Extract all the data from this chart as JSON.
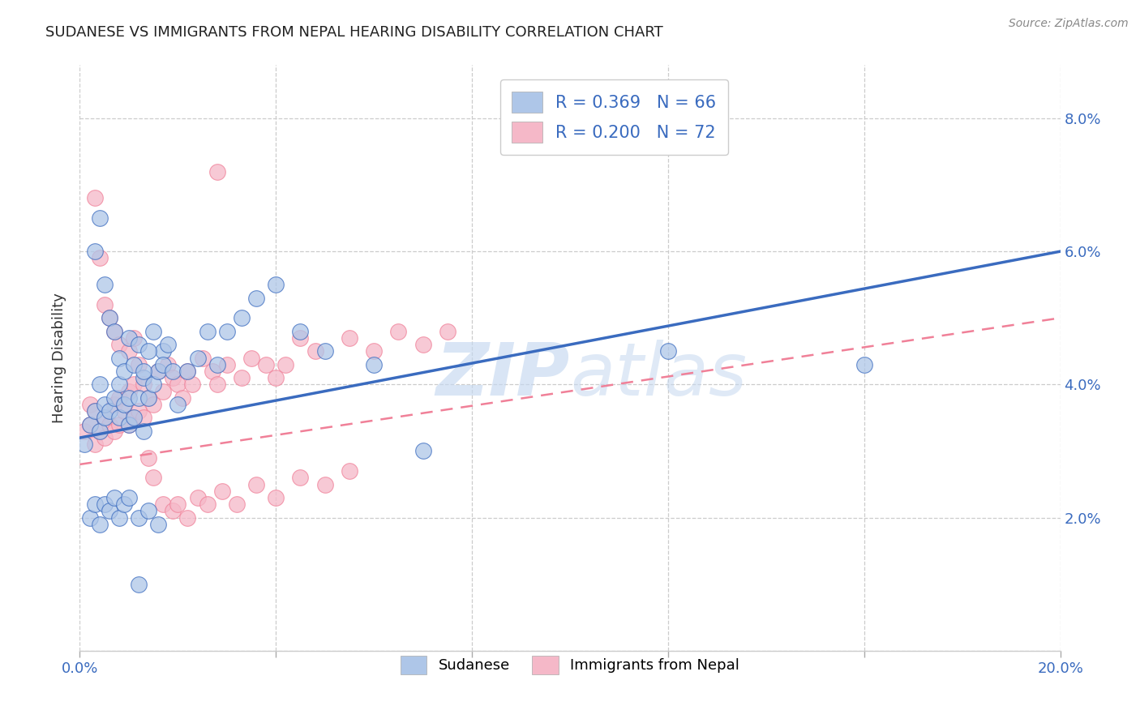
{
  "title": "SUDANESE VS IMMIGRANTS FROM NEPAL HEARING DISABILITY CORRELATION CHART",
  "source": "Source: ZipAtlas.com",
  "ylabel": "Hearing Disability",
  "xlim": [
    0.0,
    0.2
  ],
  "ylim": [
    0.0,
    0.088
  ],
  "xticks": [
    0.0,
    0.04,
    0.08,
    0.12,
    0.16,
    0.2
  ],
  "xticklabels_show": [
    "0.0%",
    "20.0%"
  ],
  "yticks_right": [
    0.0,
    0.02,
    0.04,
    0.06,
    0.08
  ],
  "yticklabels_right": [
    "",
    "2.0%",
    "4.0%",
    "6.0%",
    "8.0%"
  ],
  "legend_labels": [
    "Sudanese",
    "Immigrants from Nepal"
  ],
  "sudanese_R": 0.369,
  "sudanese_N": 66,
  "nepal_R": 0.2,
  "nepal_N": 72,
  "sudanese_color": "#aec6e8",
  "nepal_color": "#f5b8c8",
  "sudanese_line_color": "#3a6bbf",
  "nepal_line_color": "#f08098",
  "watermark_zip": "ZIP",
  "watermark_atlas": "atlas",
  "sudanese_line_x0": 0.0,
  "sudanese_line_y0": 0.032,
  "sudanese_line_x1": 0.2,
  "sudanese_line_y1": 0.06,
  "nepal_line_x0": 0.0,
  "nepal_line_y0": 0.028,
  "nepal_line_x1": 0.2,
  "nepal_line_y1": 0.05,
  "sudanese_points_x": [
    0.001,
    0.002,
    0.003,
    0.004,
    0.004,
    0.005,
    0.005,
    0.006,
    0.007,
    0.008,
    0.008,
    0.009,
    0.01,
    0.01,
    0.011,
    0.012,
    0.013,
    0.013,
    0.014,
    0.015,
    0.016,
    0.017,
    0.003,
    0.004,
    0.005,
    0.006,
    0.007,
    0.008,
    0.009,
    0.01,
    0.011,
    0.012,
    0.013,
    0.014,
    0.015,
    0.017,
    0.018,
    0.019,
    0.02,
    0.022,
    0.024,
    0.026,
    0.028,
    0.03,
    0.033,
    0.036,
    0.04,
    0.045,
    0.05,
    0.06,
    0.002,
    0.003,
    0.004,
    0.005,
    0.006,
    0.007,
    0.008,
    0.009,
    0.01,
    0.012,
    0.014,
    0.016,
    0.07,
    0.12,
    0.16,
    0.012
  ],
  "sudanese_points_y": [
    0.031,
    0.034,
    0.036,
    0.033,
    0.04,
    0.035,
    0.037,
    0.036,
    0.038,
    0.035,
    0.04,
    0.037,
    0.034,
    0.038,
    0.035,
    0.038,
    0.033,
    0.041,
    0.038,
    0.04,
    0.042,
    0.045,
    0.06,
    0.065,
    0.055,
    0.05,
    0.048,
    0.044,
    0.042,
    0.047,
    0.043,
    0.046,
    0.042,
    0.045,
    0.048,
    0.043,
    0.046,
    0.042,
    0.037,
    0.042,
    0.044,
    0.048,
    0.043,
    0.048,
    0.05,
    0.053,
    0.055,
    0.048,
    0.045,
    0.043,
    0.02,
    0.022,
    0.019,
    0.022,
    0.021,
    0.023,
    0.02,
    0.022,
    0.023,
    0.02,
    0.021,
    0.019,
    0.03,
    0.045,
    0.043,
    0.01
  ],
  "nepal_points_x": [
    0.001,
    0.002,
    0.002,
    0.003,
    0.003,
    0.004,
    0.005,
    0.005,
    0.006,
    0.007,
    0.007,
    0.008,
    0.008,
    0.009,
    0.01,
    0.01,
    0.011,
    0.011,
    0.012,
    0.013,
    0.013,
    0.014,
    0.015,
    0.016,
    0.017,
    0.018,
    0.019,
    0.02,
    0.021,
    0.022,
    0.023,
    0.025,
    0.027,
    0.028,
    0.03,
    0.033,
    0.035,
    0.038,
    0.04,
    0.042,
    0.045,
    0.048,
    0.055,
    0.06,
    0.065,
    0.07,
    0.075,
    0.003,
    0.004,
    0.005,
    0.006,
    0.007,
    0.008,
    0.01,
    0.011,
    0.012,
    0.014,
    0.015,
    0.017,
    0.019,
    0.02,
    0.022,
    0.024,
    0.026,
    0.029,
    0.032,
    0.036,
    0.04,
    0.045,
    0.05,
    0.055,
    0.028
  ],
  "nepal_points_y": [
    0.033,
    0.034,
    0.037,
    0.031,
    0.036,
    0.033,
    0.035,
    0.032,
    0.034,
    0.033,
    0.037,
    0.034,
    0.038,
    0.036,
    0.034,
    0.039,
    0.035,
    0.04,
    0.036,
    0.04,
    0.035,
    0.038,
    0.037,
    0.042,
    0.039,
    0.043,
    0.041,
    0.04,
    0.038,
    0.042,
    0.04,
    0.044,
    0.042,
    0.04,
    0.043,
    0.041,
    0.044,
    0.043,
    0.041,
    0.043,
    0.047,
    0.045,
    0.047,
    0.045,
    0.048,
    0.046,
    0.048,
    0.068,
    0.059,
    0.052,
    0.05,
    0.048,
    0.046,
    0.045,
    0.047,
    0.043,
    0.029,
    0.026,
    0.022,
    0.021,
    0.022,
    0.02,
    0.023,
    0.022,
    0.024,
    0.022,
    0.025,
    0.023,
    0.026,
    0.025,
    0.027,
    0.072
  ]
}
